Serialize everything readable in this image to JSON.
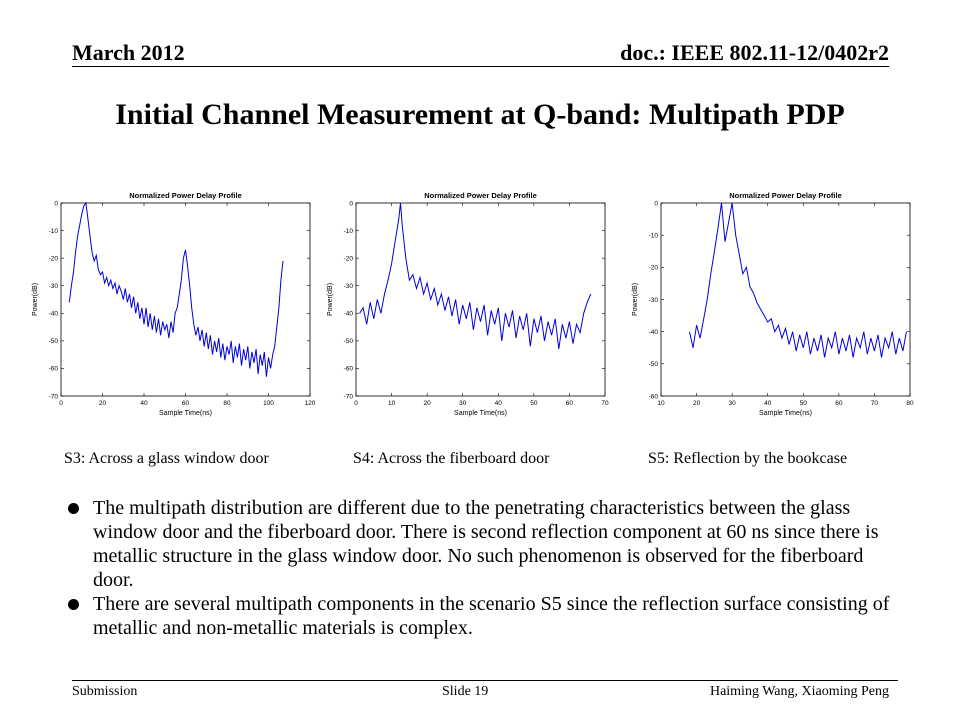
{
  "header": {
    "left": "March 2012",
    "right": "doc.: IEEE 802.11-12/0402r2"
  },
  "title": "Initial Channel Measurement at Q-band: Multipath PDP",
  "chart_data": [
    {
      "type": "line",
      "title": "Normalized Power Delay Profile",
      "xlabel": "Sample Time(ns)",
      "ylabel": "Power(dB)",
      "xlim": [
        0,
        120
      ],
      "ylim": [
        -70,
        0
      ],
      "xticks": [
        0,
        20,
        40,
        60,
        80,
        100,
        120
      ],
      "yticks": [
        0,
        -10,
        -20,
        -30,
        -40,
        -50,
        -60,
        -70
      ],
      "caption": "S3: Across a glass window door",
      "series": [
        {
          "color": "#0000dd",
          "points": [
            [
              4,
              -36
            ],
            [
              5,
              -30
            ],
            [
              6,
              -25
            ],
            [
              7,
              -18
            ],
            [
              8,
              -12
            ],
            [
              9,
              -8
            ],
            [
              10,
              -4
            ],
            [
              11,
              -1
            ],
            [
              12,
              0
            ],
            [
              13,
              -6
            ],
            [
              14,
              -12
            ],
            [
              15,
              -18
            ],
            [
              16,
              -21
            ],
            [
              17,
              -19
            ],
            [
              18,
              -24
            ],
            [
              19,
              -26
            ],
            [
              20,
              -25
            ],
            [
              21,
              -29
            ],
            [
              22,
              -27
            ],
            [
              23,
              -30
            ],
            [
              24,
              -28
            ],
            [
              25,
              -31
            ],
            [
              26,
              -29
            ],
            [
              27,
              -33
            ],
            [
              28,
              -30
            ],
            [
              29,
              -32
            ],
            [
              30,
              -35
            ],
            [
              31,
              -31
            ],
            [
              32,
              -36
            ],
            [
              33,
              -33
            ],
            [
              34,
              -38
            ],
            [
              35,
              -34
            ],
            [
              36,
              -40
            ],
            [
              37,
              -36
            ],
            [
              38,
              -42
            ],
            [
              39,
              -38
            ],
            [
              40,
              -44
            ],
            [
              41,
              -38
            ],
            [
              42,
              -45
            ],
            [
              43,
              -40
            ],
            [
              44,
              -46
            ],
            [
              45,
              -41
            ],
            [
              46,
              -47
            ],
            [
              47,
              -42
            ],
            [
              48,
              -48
            ],
            [
              49,
              -43
            ],
            [
              50,
              -46
            ],
            [
              51,
              -44
            ],
            [
              52,
              -49
            ],
            [
              53,
              -43
            ],
            [
              54,
              -47
            ],
            [
              55,
              -40
            ],
            [
              56,
              -38
            ],
            [
              57,
              -33
            ],
            [
              58,
              -28
            ],
            [
              59,
              -20
            ],
            [
              60,
              -17
            ],
            [
              61,
              -23
            ],
            [
              62,
              -30
            ],
            [
              63,
              -38
            ],
            [
              64,
              -44
            ],
            [
              65,
              -48
            ],
            [
              66,
              -45
            ],
            [
              67,
              -50
            ],
            [
              68,
              -46
            ],
            [
              69,
              -52
            ],
            [
              70,
              -47
            ],
            [
              71,
              -53
            ],
            [
              72,
              -48
            ],
            [
              73,
              -55
            ],
            [
              74,
              -50
            ],
            [
              75,
              -54
            ],
            [
              76,
              -49
            ],
            [
              77,
              -56
            ],
            [
              78,
              -51
            ],
            [
              79,
              -57
            ],
            [
              80,
              -52
            ],
            [
              81,
              -55
            ],
            [
              82,
              -50
            ],
            [
              83,
              -58
            ],
            [
              84,
              -52
            ],
            [
              85,
              -56
            ],
            [
              86,
              -51
            ],
            [
              87,
              -59
            ],
            [
              88,
              -53
            ],
            [
              89,
              -57
            ],
            [
              90,
              -52
            ],
            [
              91,
              -60
            ],
            [
              92,
              -54
            ],
            [
              93,
              -58
            ],
            [
              94,
              -53
            ],
            [
              95,
              -62
            ],
            [
              96,
              -55
            ],
            [
              97,
              -59
            ],
            [
              98,
              -54
            ],
            [
              99,
              -63
            ],
            [
              100,
              -56
            ],
            [
              101,
              -60
            ],
            [
              102,
              -55
            ],
            [
              103,
              -52
            ],
            [
              104,
              -45
            ],
            [
              105,
              -38
            ],
            [
              106,
              -28
            ],
            [
              107,
              -21
            ]
          ]
        }
      ]
    },
    {
      "type": "line",
      "title": "Normalized Power Delay Profile",
      "xlabel": "Sample Time(ns)",
      "ylabel": "Power(dB)",
      "xlim": [
        0,
        70
      ],
      "ylim": [
        -70,
        0
      ],
      "xticks": [
        0,
        10,
        20,
        30,
        40,
        50,
        60,
        70
      ],
      "yticks": [
        0,
        -10,
        -20,
        -30,
        -40,
        -50,
        -60,
        -70
      ],
      "caption": "S4: Across the fiberboard door",
      "series": [
        {
          "color": "#0000dd",
          "points": [
            [
              1,
              -40
            ],
            [
              2,
              -38
            ],
            [
              3,
              -44
            ],
            [
              4,
              -36
            ],
            [
              5,
              -42
            ],
            [
              6,
              -35
            ],
            [
              7,
              -40
            ],
            [
              8,
              -33
            ],
            [
              9,
              -28
            ],
            [
              10,
              -22
            ],
            [
              11,
              -14
            ],
            [
              12,
              -6
            ],
            [
              12.5,
              0
            ],
            [
              13,
              -8
            ],
            [
              14,
              -20
            ],
            [
              15,
              -28
            ],
            [
              16,
              -26
            ],
            [
              17,
              -31
            ],
            [
              18,
              -27
            ],
            [
              19,
              -33
            ],
            [
              20,
              -29
            ],
            [
              21,
              -35
            ],
            [
              22,
              -31
            ],
            [
              23,
              -37
            ],
            [
              24,
              -33
            ],
            [
              25,
              -39
            ],
            [
              26,
              -34
            ],
            [
              27,
              -41
            ],
            [
              28,
              -35
            ],
            [
              29,
              -44
            ],
            [
              30,
              -37
            ],
            [
              31,
              -42
            ],
            [
              32,
              -36
            ],
            [
              33,
              -46
            ],
            [
              34,
              -38
            ],
            [
              35,
              -43
            ],
            [
              36,
              -37
            ],
            [
              37,
              -48
            ],
            [
              38,
              -39
            ],
            [
              39,
              -44
            ],
            [
              40,
              -38
            ],
            [
              41,
              -50
            ],
            [
              42,
              -40
            ],
            [
              43,
              -45
            ],
            [
              44,
              -39
            ],
            [
              45,
              -49
            ],
            [
              46,
              -41
            ],
            [
              47,
              -46
            ],
            [
              48,
              -40
            ],
            [
              49,
              -52
            ],
            [
              50,
              -42
            ],
            [
              51,
              -47
            ],
            [
              52,
              -41
            ],
            [
              53,
              -50
            ],
            [
              54,
              -43
            ],
            [
              55,
              -48
            ],
            [
              56,
              -42
            ],
            [
              57,
              -53
            ],
            [
              58,
              -44
            ],
            [
              59,
              -49
            ],
            [
              60,
              -43
            ],
            [
              61,
              -51
            ],
            [
              62,
              -44
            ],
            [
              63,
              -47
            ],
            [
              64,
              -40
            ],
            [
              65,
              -36
            ],
            [
              66,
              -33
            ]
          ]
        }
      ]
    },
    {
      "type": "line",
      "title": "Normalized Power Delay Profile",
      "xlabel": "Sample Time(ns)",
      "ylabel": "Power(dB)",
      "xlim": [
        10,
        80
      ],
      "ylim": [
        -60,
        0
      ],
      "xticks": [
        10,
        20,
        30,
        40,
        50,
        60,
        70,
        80
      ],
      "yticks": [
        0,
        -10,
        -20,
        -30,
        -40,
        -50,
        -60
      ],
      "caption": "S5: Reflection by the bookcase",
      "series": [
        {
          "color": "#0000dd",
          "points": [
            [
              18,
              -40
            ],
            [
              19,
              -45
            ],
            [
              20,
              -38
            ],
            [
              21,
              -42
            ],
            [
              22,
              -36
            ],
            [
              23,
              -30
            ],
            [
              24,
              -22
            ],
            [
              25,
              -15
            ],
            [
              26,
              -8
            ],
            [
              27,
              0
            ],
            [
              28,
              -12
            ],
            [
              29,
              -6
            ],
            [
              30,
              0
            ],
            [
              31,
              -10
            ],
            [
              32,
              -16
            ],
            [
              33,
              -22
            ],
            [
              34,
              -20
            ],
            [
              35,
              -26
            ],
            [
              36,
              -28
            ],
            [
              37,
              -31
            ],
            [
              38,
              -33
            ],
            [
              39,
              -35
            ],
            [
              40,
              -37
            ],
            [
              41,
              -36
            ],
            [
              42,
              -40
            ],
            [
              43,
              -38
            ],
            [
              44,
              -42
            ],
            [
              45,
              -39
            ],
            [
              46,
              -44
            ],
            [
              47,
              -40
            ],
            [
              48,
              -46
            ],
            [
              49,
              -41
            ],
            [
              50,
              -45
            ],
            [
              51,
              -40
            ],
            [
              52,
              -47
            ],
            [
              53,
              -42
            ],
            [
              54,
              -46
            ],
            [
              55,
              -41
            ],
            [
              56,
              -48
            ],
            [
              57,
              -42
            ],
            [
              58,
              -45
            ],
            [
              59,
              -40
            ],
            [
              60,
              -47
            ],
            [
              61,
              -42
            ],
            [
              62,
              -46
            ],
            [
              63,
              -41
            ],
            [
              64,
              -48
            ],
            [
              65,
              -42
            ],
            [
              66,
              -45
            ],
            [
              67,
              -40
            ],
            [
              68,
              -47
            ],
            [
              69,
              -42
            ],
            [
              70,
              -46
            ],
            [
              71,
              -41
            ],
            [
              72,
              -48
            ],
            [
              73,
              -42
            ],
            [
              74,
              -45
            ],
            [
              75,
              -40
            ],
            [
              76,
              -47
            ],
            [
              77,
              -42
            ],
            [
              78,
              -46
            ],
            [
              79,
              -40
            ]
          ]
        }
      ]
    }
  ],
  "bullets": [
    "The multipath distribution are different due to the penetrating characteristics between the glass window door and the fiberboard door. There is second reflection component at 60 ns since there is metallic structure in the glass window door. No such phenomenon is observed for the fiberboard door.",
    "There are several multipath components in the scenario S5 since the reflection surface consisting of metallic and non-metallic materials is complex."
  ],
  "footer": {
    "left": "Submission",
    "center": "Slide 19",
    "right": "Haiming Wang, Xiaoming Peng"
  }
}
